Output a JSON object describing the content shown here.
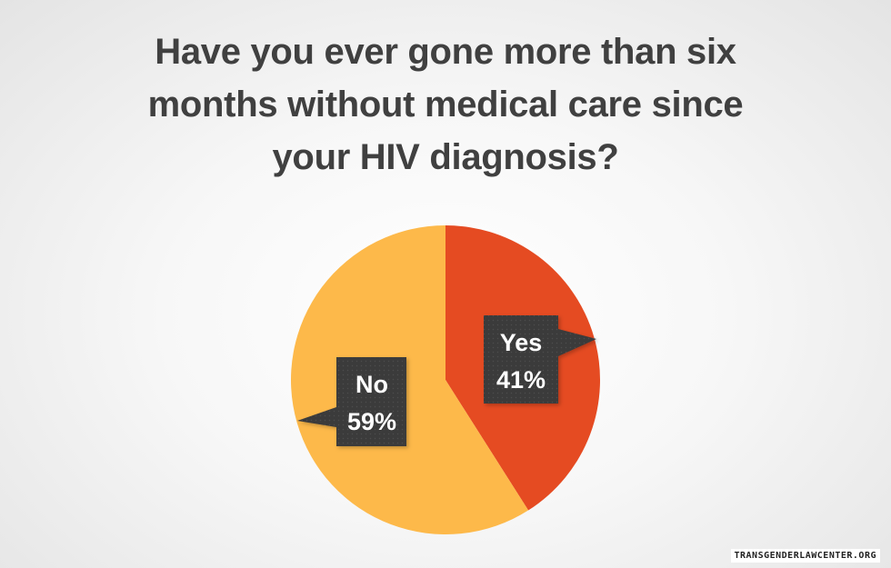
{
  "chart_data": {
    "type": "pie",
    "title_lines": [
      "Have you ever gone more than six",
      "months without medical care since",
      "your HIV diagnosis?"
    ],
    "slices": [
      {
        "name": "Yes",
        "value": 41,
        "value_label": "41%",
        "color": "#e54b22"
      },
      {
        "name": "No",
        "value": 59,
        "value_label": "59%",
        "color": "#fdb94a"
      }
    ],
    "label_box_color": "#3a3a3a"
  },
  "watermark": "TRANSGENDERLAWCENTER.ORG"
}
